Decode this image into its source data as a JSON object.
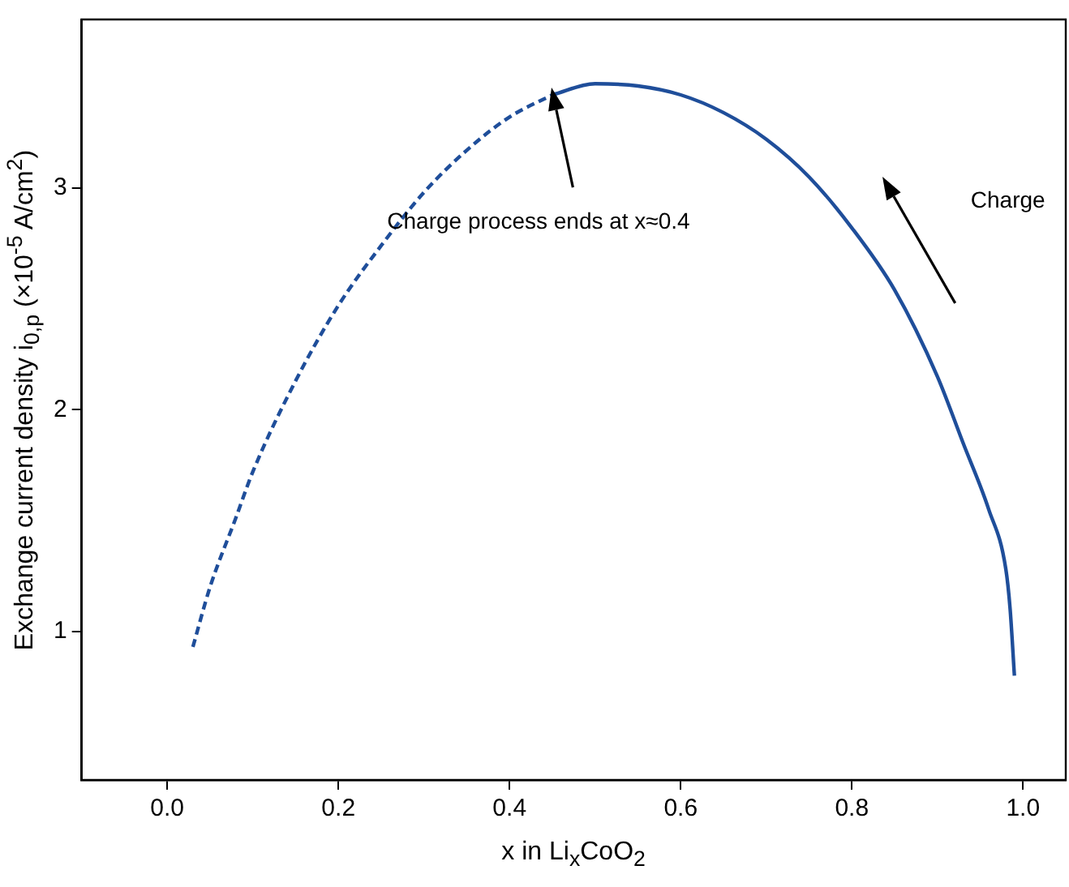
{
  "chart_data": {
    "type": "line",
    "xlabel": "x in Li$_{x}$CoO$_{2}$",
    "ylabel": "Exchange current density i$_{0,p}$ (×10$^{-5}$ A/cm$^{2}$)",
    "xlim": [
      -0.1,
      1.05
    ],
    "ylim": [
      0.33,
      3.76
    ],
    "xticks": [
      {
        "value": 0,
        "label": "0.0"
      },
      0.2,
      0.4,
      0.6,
      0.8,
      {
        "value": 1,
        "label": "1.0"
      }
    ],
    "yticks": [
      1,
      2,
      3
    ],
    "grid": false,
    "legend": false,
    "marker": "none",
    "series": [
      {
        "color": "#1f4e9a",
        "line_style": "dashed",
        "x": [
          0.03,
          0.05,
          0.08,
          0.1,
          0.15,
          0.2,
          0.25,
          0.3,
          0.35,
          0.4,
          0.45
        ],
        "values": [
          0.93,
          1.2,
          1.51,
          1.72,
          2.13,
          2.47,
          2.74,
          2.98,
          3.17,
          3.32,
          3.42
        ]
      },
      {
        "color": "#1f4e9a",
        "line_style": "solid",
        "x": [
          0.45,
          0.5,
          0.55,
          0.6,
          0.65,
          0.7,
          0.75,
          0.8,
          0.85,
          0.9,
          0.93,
          0.96,
          0.98,
          0.985,
          0.99
        ],
        "values": [
          3.42,
          3.47,
          3.46,
          3.42,
          3.34,
          3.22,
          3.05,
          2.82,
          2.54,
          2.15,
          1.85,
          1.55,
          1.28,
          1.1,
          0.8
        ]
      }
    ],
    "annotations": [
      "Charge process ends at x≈0.4",
      "Charge"
    ]
  }
}
